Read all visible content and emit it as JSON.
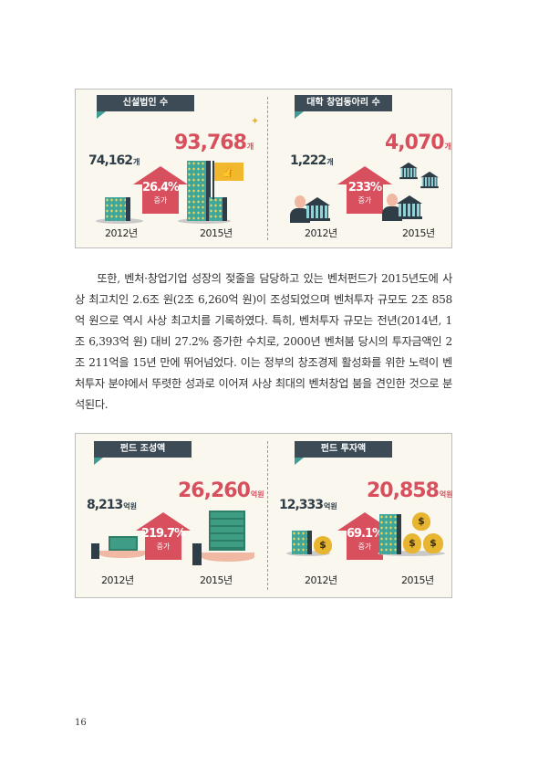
{
  "infographic_1": {
    "left": {
      "title": "신설법인 수",
      "value_2012": "74,162",
      "value_2015": "93,768",
      "unit": "개",
      "increase_pct": "26.4%",
      "increase_label": "증가",
      "year_2012": "2012년",
      "year_2015": "2015년"
    },
    "right": {
      "title": "대학 창업동아리 수",
      "value_2012": "1,222",
      "value_2015": "4,070",
      "unit": "개",
      "increase_pct": "233%",
      "increase_label": "증가",
      "year_2012": "2012년",
      "year_2015": "2015년"
    }
  },
  "paragraph": "또한, 벤처·창업기업 성장의 젖줄을 담당하고 있는 벤처펀드가 2015년도에 사상 최고치인 2.6조 원(2조 6,260억 원)이 조성되었으며 벤처투자 규모도 2조 858억 원으로 역시 사상 최고치를 기록하였다. 특히, 벤처투자 규모는 전년(2014년, 1조 6,393억 원) 대비 27.2% 증가한 수치로, 2000년 벤처붐 당시의 투자금액인 2조 211억을 15년 만에 뛰어넘었다. 이는 정부의 창조경제 활성화를 위한 노력이 벤처투자 분야에서 뚜렷한 성과로 이어져 사상 최대의 벤처창업 붐을 견인한 것으로 분석된다.",
  "infographic_2": {
    "left": {
      "title": "펀드 조성액",
      "value_2012": "8,213",
      "value_2015": "26,260",
      "unit": "억원",
      "increase_pct": "219.7%",
      "increase_label": "증가",
      "year_2012": "2012년",
      "year_2015": "2015년"
    },
    "right": {
      "title": "펀드 투자액",
      "value_2012": "12,333",
      "value_2015": "20,858",
      "unit": "억원",
      "increase_pct": "69.1%",
      "increase_label": "증가",
      "year_2012": "2012년",
      "year_2015": "2015년"
    }
  },
  "icons": {
    "dollar": "$"
  },
  "colors": {
    "accent_red": "#d8505e",
    "dark": "#2f3d47",
    "teal": "#3fa69c"
  },
  "page_number": "16"
}
